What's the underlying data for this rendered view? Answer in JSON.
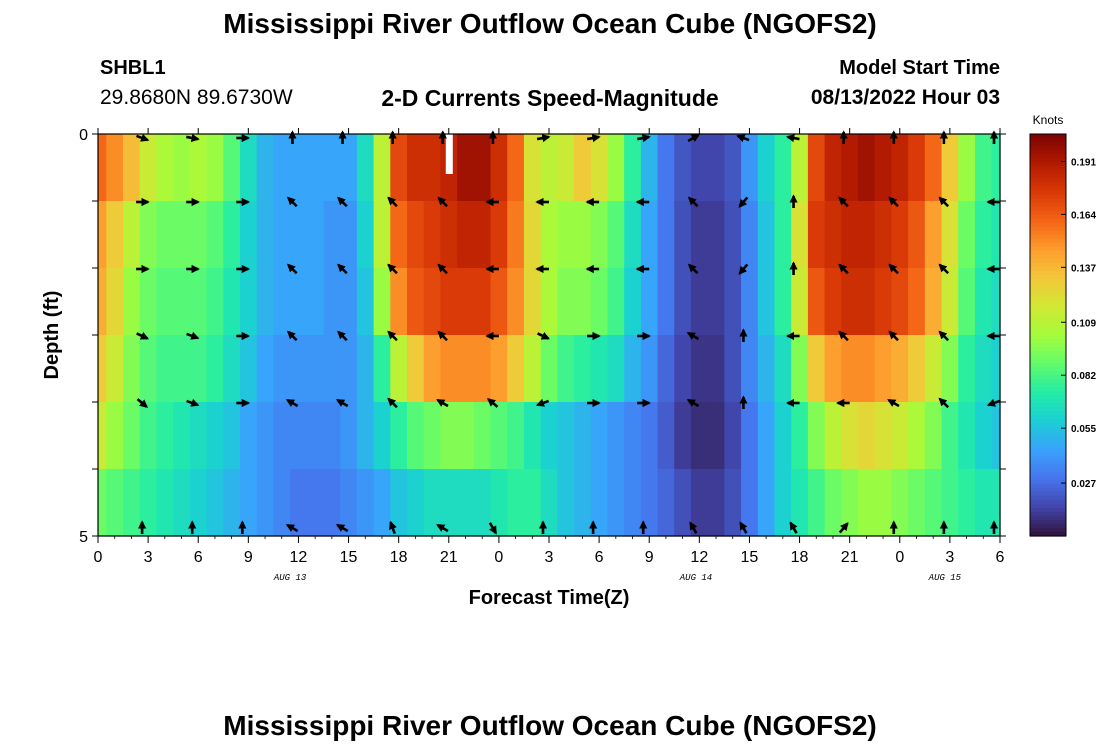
{
  "header": {
    "title": "Mississippi River Outflow Ocean Cube (NGOFS2)",
    "station": "SHBL1",
    "location": "29.8680N  89.6730W",
    "subtitle": "2-D Currents Speed-Magnitude",
    "model_start_label": "Model Start Time",
    "model_start_value": "08/13/2022 Hour 03"
  },
  "footer": {
    "title": "Mississippi River Outflow Ocean Cube (NGOFS2)"
  },
  "chart_data": {
    "type": "heatmap",
    "title": "2-D Currents Speed-Magnitude",
    "xlabel": "Forecast Time(Z)",
    "ylabel": "Depth (ft)",
    "xlim": [
      0,
      54
    ],
    "ylim": [
      0,
      5
    ],
    "x_tick_labels": [
      "0",
      "3",
      "6",
      "9",
      "12",
      "15",
      "18",
      "21",
      "0",
      "3",
      "6",
      "9",
      "12",
      "15",
      "18",
      "21",
      "0",
      "3",
      "6"
    ],
    "y_tick_labels": [
      "0",
      "5"
    ],
    "date_labels": [
      {
        "hour": 11.5,
        "text": "AUG 13"
      },
      {
        "hour": 35.8,
        "text": "AUG 14"
      },
      {
        "hour": 50.7,
        "text": "AUG 15"
      }
    ],
    "colorbar": {
      "label": "Knots",
      "min": 0.0,
      "max": 0.205,
      "ticks": [
        0.191,
        0.164,
        0.137,
        0.109,
        0.082,
        0.055,
        0.027
      ],
      "palette": [
        "#30123b",
        "#4145ab",
        "#4675ed",
        "#39a2fc",
        "#1bcfd4",
        "#24eca6",
        "#61fc6c",
        "#a4fc3b",
        "#d1e834",
        "#f3c63a",
        "#fe9b2d",
        "#f36315",
        "#d93806",
        "#b11901",
        "#7a0403"
      ]
    },
    "hours": [
      0,
      1,
      2,
      3,
      4,
      5,
      6,
      7,
      8,
      9,
      10,
      11,
      12,
      13,
      14,
      15,
      16,
      17,
      18,
      19,
      20,
      21,
      22,
      23,
      24,
      25,
      26,
      27,
      28,
      29,
      30,
      31,
      32,
      33,
      34,
      35,
      36,
      37,
      38,
      39,
      40,
      41,
      42,
      43,
      44,
      45,
      46,
      47,
      48,
      49,
      50,
      51,
      52,
      53,
      54
    ],
    "speed_by_layer": [
      [
        0.16,
        0.15,
        0.135,
        0.115,
        0.105,
        0.1,
        0.105,
        0.1,
        0.085,
        0.065,
        0.05,
        0.045,
        0.045,
        0.045,
        0.045,
        0.045,
        0.065,
        0.11,
        0.17,
        0.18,
        0.18,
        0.185,
        0.195,
        0.195,
        0.18,
        0.16,
        0.12,
        0.11,
        0.115,
        0.13,
        0.12,
        0.1,
        0.075,
        0.05,
        0.03,
        0.02,
        0.015,
        0.015,
        0.02,
        0.04,
        0.06,
        0.075,
        0.11,
        0.17,
        0.185,
        0.19,
        0.195,
        0.19,
        0.185,
        0.175,
        0.16,
        0.13,
        0.1,
        0.08,
        0.075
      ],
      [
        0.145,
        0.13,
        0.11,
        0.095,
        0.09,
        0.09,
        0.09,
        0.085,
        0.075,
        0.06,
        0.05,
        0.045,
        0.045,
        0.045,
        0.04,
        0.04,
        0.06,
        0.11,
        0.16,
        0.17,
        0.175,
        0.18,
        0.185,
        0.185,
        0.175,
        0.155,
        0.125,
        0.105,
        0.1,
        0.1,
        0.095,
        0.085,
        0.065,
        0.045,
        0.03,
        0.018,
        0.012,
        0.012,
        0.018,
        0.035,
        0.055,
        0.075,
        0.12,
        0.175,
        0.18,
        0.185,
        0.185,
        0.18,
        0.175,
        0.165,
        0.145,
        0.12,
        0.09,
        0.075,
        0.07
      ],
      [
        0.14,
        0.125,
        0.1,
        0.09,
        0.085,
        0.085,
        0.085,
        0.08,
        0.07,
        0.06,
        0.05,
        0.045,
        0.045,
        0.045,
        0.04,
        0.04,
        0.055,
        0.1,
        0.15,
        0.165,
        0.17,
        0.175,
        0.175,
        0.175,
        0.165,
        0.15,
        0.125,
        0.105,
        0.095,
        0.095,
        0.09,
        0.08,
        0.06,
        0.045,
        0.03,
        0.018,
        0.012,
        0.012,
        0.018,
        0.035,
        0.055,
        0.075,
        0.115,
        0.165,
        0.175,
        0.18,
        0.18,
        0.175,
        0.17,
        0.16,
        0.14,
        0.115,
        0.085,
        0.07,
        0.065
      ],
      [
        0.13,
        0.115,
        0.095,
        0.085,
        0.08,
        0.08,
        0.08,
        0.075,
        0.065,
        0.055,
        0.045,
        0.04,
        0.04,
        0.04,
        0.04,
        0.04,
        0.05,
        0.075,
        0.11,
        0.13,
        0.145,
        0.15,
        0.15,
        0.15,
        0.145,
        0.13,
        0.11,
        0.09,
        0.08,
        0.075,
        0.07,
        0.065,
        0.05,
        0.04,
        0.025,
        0.015,
        0.01,
        0.01,
        0.018,
        0.035,
        0.05,
        0.065,
        0.095,
        0.13,
        0.145,
        0.15,
        0.15,
        0.145,
        0.14,
        0.13,
        0.115,
        0.095,
        0.075,
        0.065,
        0.06
      ],
      [
        0.115,
        0.1,
        0.09,
        0.08,
        0.075,
        0.07,
        0.065,
        0.06,
        0.055,
        0.045,
        0.04,
        0.035,
        0.035,
        0.035,
        0.035,
        0.04,
        0.05,
        0.06,
        0.075,
        0.085,
        0.09,
        0.095,
        0.095,
        0.09,
        0.085,
        0.08,
        0.07,
        0.06,
        0.055,
        0.05,
        0.045,
        0.04,
        0.035,
        0.03,
        0.022,
        0.012,
        0.008,
        0.008,
        0.015,
        0.03,
        0.045,
        0.06,
        0.075,
        0.095,
        0.11,
        0.12,
        0.125,
        0.12,
        0.115,
        0.105,
        0.095,
        0.08,
        0.07,
        0.06,
        0.055
      ],
      [
        0.09,
        0.085,
        0.08,
        0.075,
        0.07,
        0.065,
        0.06,
        0.055,
        0.05,
        0.045,
        0.04,
        0.035,
        0.03,
        0.03,
        0.03,
        0.035,
        0.04,
        0.045,
        0.055,
        0.06,
        0.065,
        0.065,
        0.065,
        0.065,
        0.07,
        0.075,
        0.075,
        0.065,
        0.055,
        0.05,
        0.045,
        0.04,
        0.035,
        0.03,
        0.025,
        0.018,
        0.012,
        0.012,
        0.018,
        0.03,
        0.045,
        0.06,
        0.07,
        0.08,
        0.09,
        0.095,
        0.1,
        0.1,
        0.095,
        0.09,
        0.085,
        0.08,
        0.075,
        0.07,
        0.07
      ]
    ],
    "arrow_hours": [
      3,
      6,
      9,
      12,
      15,
      18,
      21,
      24,
      27,
      30,
      33,
      36,
      39,
      42,
      45,
      48,
      51,
      54
    ],
    "arrow_dir_deg_by_layer": [
      [
        110,
        100,
        90,
        0,
        0,
        0,
        0,
        0,
        80,
        80,
        80,
        60,
        290,
        280,
        0,
        0,
        0,
        0
      ],
      [
        90,
        90,
        90,
        315,
        315,
        315,
        315,
        270,
        270,
        270,
        270,
        315,
        220,
        0,
        315,
        315,
        315,
        270
      ],
      [
        90,
        90,
        90,
        315,
        315,
        315,
        315,
        270,
        270,
        270,
        270,
        315,
        220,
        0,
        315,
        315,
        315,
        270
      ],
      [
        115,
        110,
        90,
        315,
        315,
        315,
        315,
        270,
        115,
        90,
        90,
        300,
        0,
        270,
        315,
        315,
        315,
        270
      ],
      [
        130,
        110,
        90,
        300,
        300,
        315,
        300,
        310,
        250,
        90,
        90,
        300,
        0,
        270,
        270,
        300,
        315,
        250
      ],
      [
        0,
        0,
        0,
        300,
        300,
        340,
        300,
        150,
        0,
        0,
        0,
        330,
        330,
        330,
        40,
        0,
        0,
        0
      ]
    ]
  }
}
